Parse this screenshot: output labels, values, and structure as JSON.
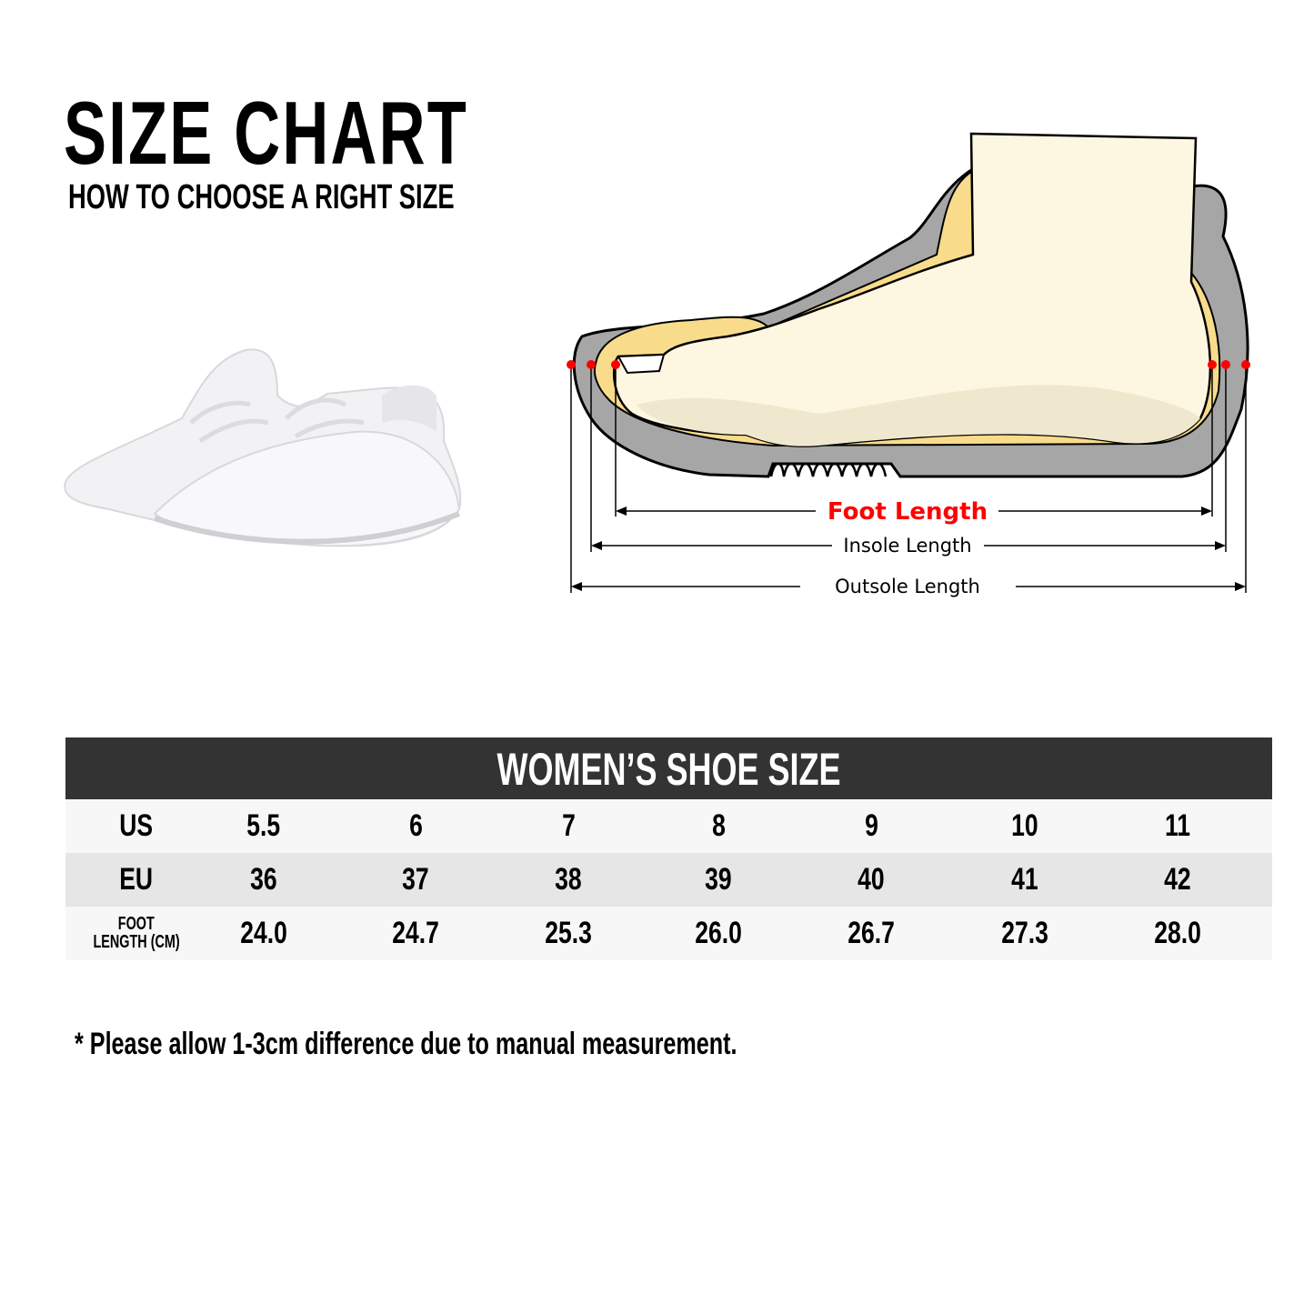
{
  "header": {
    "title": "SIZE CHART",
    "subtitle": "HOW TO CHOOSE A RIGHT SIZE"
  },
  "diagram": {
    "foot_length_label": "Foot Length",
    "insole_length_label": "Insole Length",
    "outsole_length_label": "Outsole Length",
    "colors": {
      "foot_length": "#ff0000",
      "outsole": "#a6a6a6",
      "insole": "#f8dc8c",
      "foot": "#fdf7e1",
      "marker": "#ff0000"
    }
  },
  "table": {
    "title": "WOMEN’S SHOE SIZE",
    "header_color": "#333333",
    "rows": [
      {
        "label": "US",
        "values": [
          "5.5",
          "6",
          "7",
          "8",
          "9",
          "10",
          "11"
        ]
      },
      {
        "label": "EU",
        "values": [
          "36",
          "37",
          "38",
          "39",
          "40",
          "41",
          "42"
        ]
      },
      {
        "label": "FOOT LENGTH (CM)",
        "label_line1": "FOOT",
        "label_line2": "LENGTH (CM)",
        "values": [
          "24.0",
          "24.7",
          "25.3",
          "26.0",
          "26.7",
          "27.3",
          "28.0"
        ]
      }
    ]
  },
  "note": "* Please allow 1-3cm difference due to manual measurement."
}
